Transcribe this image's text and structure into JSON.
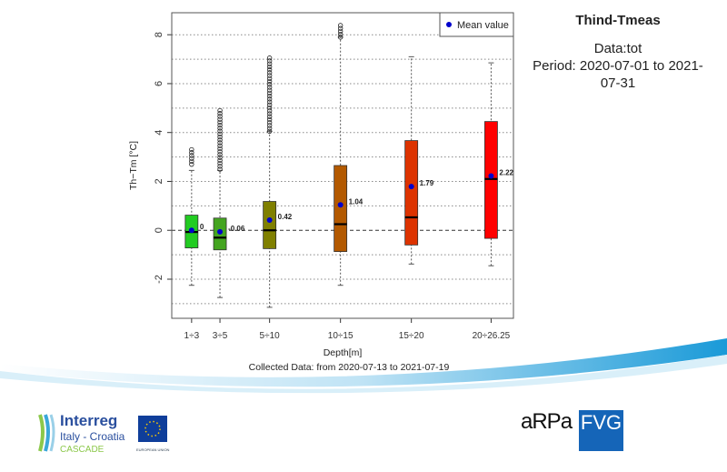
{
  "sidebar": {
    "title": "Thind-Tmeas",
    "data_line": "Data:tot",
    "period_line": "Period: 2020-07-01 to 2021-07-31"
  },
  "logos": {
    "interreg": "Interreg",
    "program": "Italy - Croatia",
    "project": "CASCADE",
    "eu": "EUROPEAN UNION",
    "arpa": "aRPa",
    "fvg": "FVG"
  },
  "chart_data": {
    "type": "box",
    "xlabel": "Depth[m]",
    "subtitle": "Collected Data: from 2020-07-13 to 2021-07-19",
    "ylabel": "Th−Tm [°C]",
    "ylim": [
      -3.6,
      8.9
    ],
    "yticks": [
      -2,
      0,
      2,
      4,
      6,
      8
    ],
    "grid": "horizontal dotted every 1",
    "legend": {
      "label": "Mean value",
      "placement": "top-right",
      "color": "#0000cc"
    },
    "categories": [
      "1÷3",
      "3÷5",
      "5÷10",
      "10÷15",
      "15÷20",
      "20÷26.25"
    ],
    "x_depth_mid": [
      2,
      4,
      7.5,
      12.5,
      17.5,
      23.125
    ],
    "xlim": [
      0.6,
      24.7
    ],
    "boxes": [
      {
        "q1": -0.72,
        "median": -0.07,
        "q3": 0.62,
        "whisk_lo": -2.25,
        "whisk_hi": 2.45,
        "out_lo": 2.7,
        "out_hi": 3.4,
        "mean": 0.0,
        "mean_label": "0",
        "color": "#22cc22"
      },
      {
        "q1": -0.8,
        "median": -0.3,
        "q3": 0.5,
        "whisk_lo": -2.75,
        "whisk_hi": 2.45,
        "out_lo": 2.5,
        "out_hi": 5.0,
        "mean": -0.06,
        "mean_label": "-0.06",
        "color": "#44a520"
      },
      {
        "q1": -0.75,
        "median": 0.0,
        "q3": 1.18,
        "whisk_lo": -3.15,
        "whisk_hi": 4.05,
        "out_lo": 4.05,
        "out_hi": 7.1,
        "mean": 0.42,
        "mean_label": "0.42",
        "color": "#808000"
      },
      {
        "q1": -0.87,
        "median": 0.25,
        "q3": 2.65,
        "whisk_lo": -2.25,
        "whisk_hi": 7.9,
        "out_lo": 7.9,
        "out_hi": 8.45,
        "mean": 1.04,
        "mean_label": "1.04",
        "color": "#b35900"
      },
      {
        "q1": -0.6,
        "median": 0.53,
        "q3": 3.67,
        "whisk_lo": -1.38,
        "whisk_hi": 7.1,
        "out_lo": null,
        "out_hi": null,
        "mean": 1.79,
        "mean_label": "1.79",
        "color": "#dd3300"
      },
      {
        "q1": -0.33,
        "median": 2.1,
        "q3": 4.45,
        "whisk_lo": -1.45,
        "whisk_hi": 6.85,
        "out_lo": null,
        "out_hi": null,
        "mean": 2.22,
        "mean_label": "2.22",
        "color": "#ff0000"
      }
    ]
  }
}
